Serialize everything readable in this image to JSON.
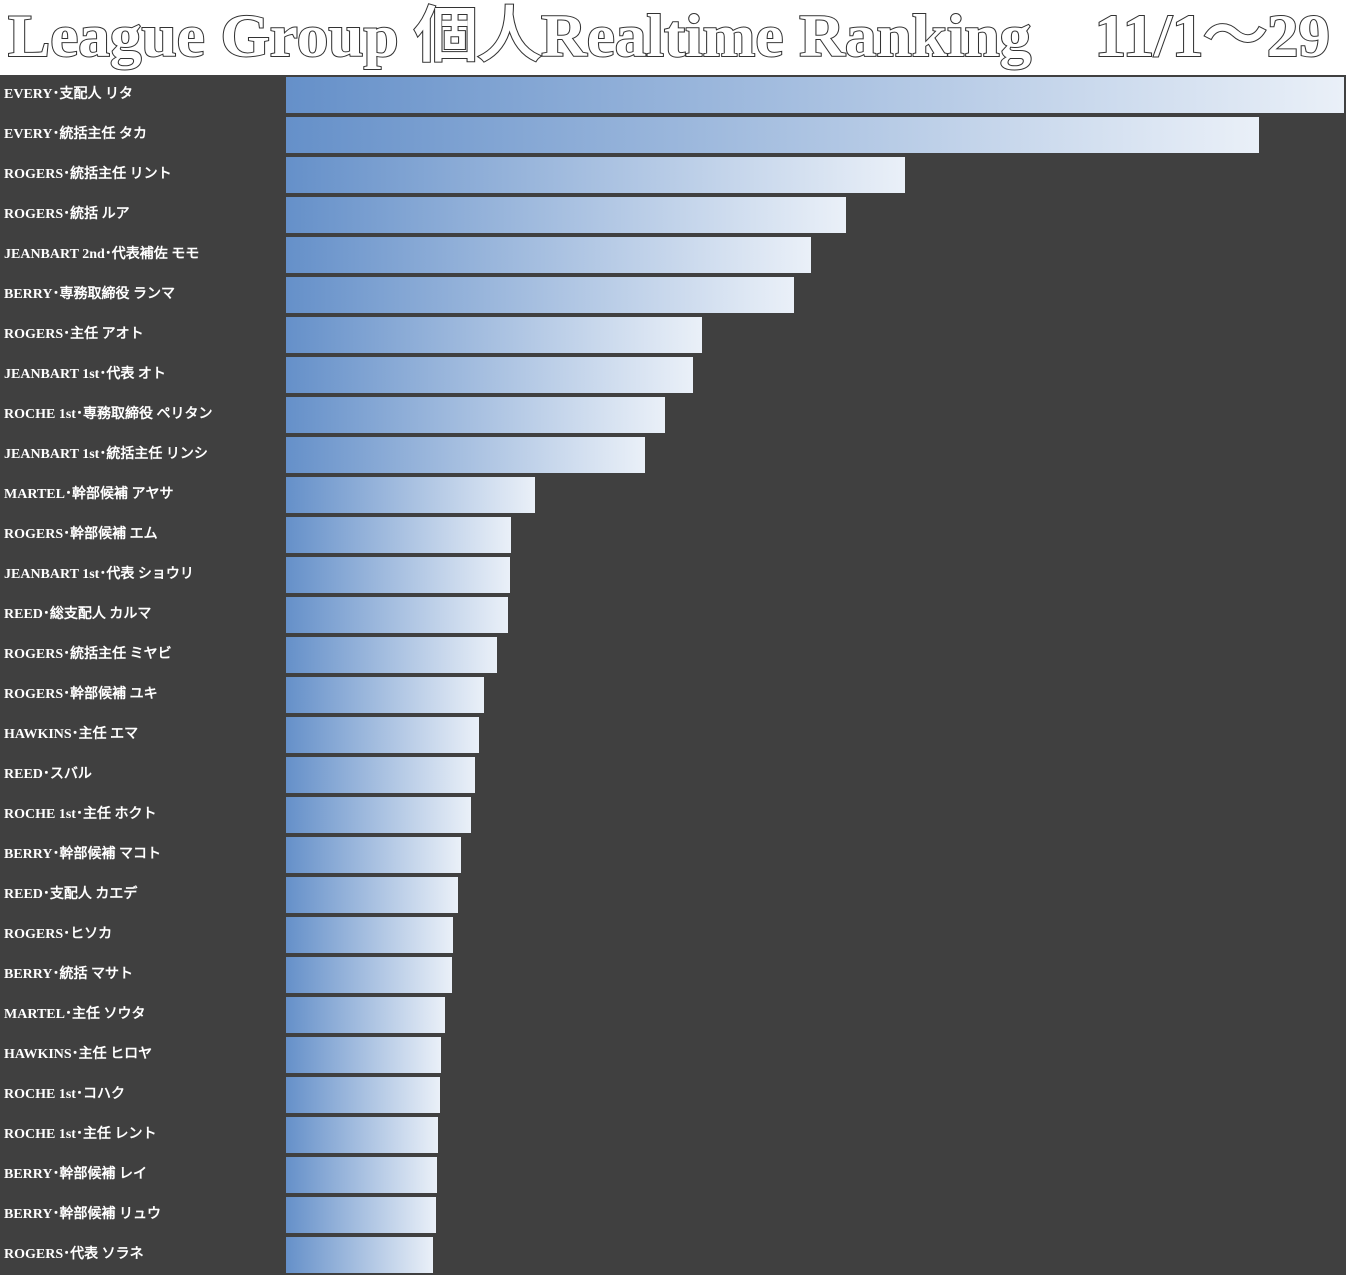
{
  "chart_data": {
    "type": "bar",
    "orientation": "horizontal",
    "title": "League Group 個人Realtime Ranking　11/1～29",
    "categories": [
      "EVERY･支配人 リタ",
      "EVERY･統括主任 タカ",
      "ROGERS･統括主任 リント",
      "ROGERS･統括 ルア",
      "JEANBART 2nd･代表補佐 モモ",
      "BERRY･専務取締役 ランマ",
      "ROGERS･主任 アオト",
      "JEANBART 1st･代表 オト",
      "ROCHE 1st･専務取締役 ペリタン",
      "JEANBART 1st･統括主任 リンシ",
      "MARTEL･幹部候補 アヤサ",
      "ROGERS･幹部候補 エム",
      "JEANBART 1st･代表 ショウリ",
      "REED･総支配人 カルマ",
      "ROGERS･統括主任 ミヤビ",
      "ROGERS･幹部候補 ユキ",
      "HAWKINS･主任 エマ",
      "REED･スバル",
      "ROCHE 1st･主任 ホクト",
      "BERRY･幹部候補 マコト",
      "REED･支配人 カエデ",
      "ROGERS･ヒソカ",
      "BERRY･統括 マサト",
      "MARTEL･主任 ソウタ",
      "HAWKINS･主任 ヒロヤ",
      "ROCHE 1st･コハク",
      "ROCHE 1st･主任 レント",
      "BERRY･幹部候補 レイ",
      "BERRY･幹部候補 リュウ",
      "ROGERS･代表 ソラネ"
    ],
    "values": [
      1058,
      973,
      619,
      560,
      525,
      508,
      416,
      407,
      379,
      359,
      249,
      225,
      224,
      222,
      211,
      198,
      193,
      189,
      185,
      175,
      172,
      167,
      166,
      159,
      155,
      154,
      152,
      151,
      150,
      147
    ],
    "xlim": [
      0,
      1058
    ],
    "color_start": "#6590c9",
    "color_end": "#eaf0f8"
  }
}
